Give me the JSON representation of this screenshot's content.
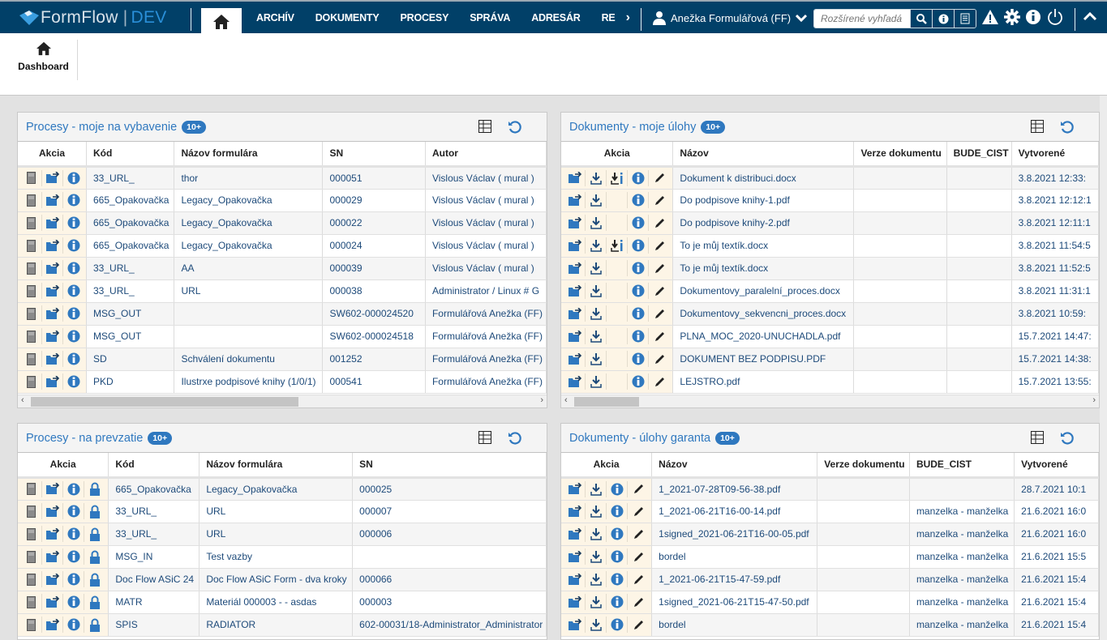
{
  "app": {
    "name": "FormFlow",
    "env": "DEV",
    "brand_color": "#014068",
    "accent": "#2f78bf"
  },
  "nav": {
    "items": [
      "ARCHÍV",
      "DOKUMENTY",
      "PROCESY",
      "SPRÁVA",
      "ADRESÁR",
      "RE"
    ]
  },
  "user": {
    "name": "Anežka Formulářová (FF)"
  },
  "search": {
    "placeholder": "Rozšírené vyhľadá"
  },
  "subnav": {
    "dashboard": "Dashboard"
  },
  "panels": [
    {
      "title": "Procesy - moje na vybavenie",
      "badge": "10+",
      "columns": [
        "Akcia",
        "Kód",
        "Názov formulára",
        "SN",
        "Autor"
      ],
      "rows": [
        [
          "33_URL_",
          "thor",
          "000051",
          "Vislous Václav ( mural )"
        ],
        [
          "665_Opakovačka",
          "Legacy_Opakovačka",
          "000029",
          "Vislous Václav ( mural )"
        ],
        [
          "665_Opakovačka",
          "Legacy_Opakovačka",
          "000022",
          "Vislous Václav ( mural )"
        ],
        [
          "665_Opakovačka",
          "Legacy_Opakovačka",
          "000024",
          "Vislous Václav ( mural )"
        ],
        [
          "33_URL_",
          "AA",
          "000039",
          "Vislous Václav ( mural )"
        ],
        [
          "33_URL_",
          "URL",
          "000038",
          "Administrator / Linux # G"
        ],
        [
          "MSG_OUT",
          "",
          "SW602-000024520",
          "Formulářová Anežka (FF)"
        ],
        [
          "MSG_OUT",
          "",
          "SW602-000024518",
          "Formulářová Anežka (FF)"
        ],
        [
          "SD",
          "Schválení dokumentu",
          "001252",
          "Formulářová Anežka (FF)"
        ],
        [
          "PKD",
          "Ilustrxe podpisové knihy (1/0/1)",
          "000541",
          "Formulářová Anežka (FF)"
        ]
      ],
      "actions": [
        [
          "document",
          "folder-swap",
          "info"
        ]
      ]
    },
    {
      "title": "Dokumenty - moje úlohy",
      "badge": "10+",
      "columns": [
        "Akcia",
        "Názov",
        "Verze dokumentu",
        "BUDE_CIST",
        "Vytvorené"
      ],
      "rows": [
        [
          "Dokument k distribuci.docx",
          "",
          "",
          "3.8.2021 12:33:"
        ],
        [
          "Do podpisove knihy-1.pdf",
          "",
          "",
          "3.8.2021 12:12:1"
        ],
        [
          "Do podpisove knihy-2.pdf",
          "",
          "",
          "3.8.2021 12:11:1"
        ],
        [
          "To je můj textík.docx",
          "",
          "",
          "3.8.2021 11:54:5"
        ],
        [
          "To je můj textík.docx",
          "",
          "",
          "3.8.2021 11:52:5"
        ],
        [
          "Dokumentovy_paralelní_proces.docx",
          "",
          "",
          "3.8.2021 11:31:1"
        ],
        [
          "Dokumentovy_sekvencni_proces.docx",
          "",
          "",
          "3.8.2021 10:59:"
        ],
        [
          "PLNA_MOC_2020-UNUCHADLA.pdf",
          "",
          "",
          "15.7.2021 14:47:"
        ],
        [
          "DOKUMENT BEZ PODPISU.PDF",
          "",
          "",
          "15.7.2021 14:38:"
        ],
        [
          "LEJSTRO.pdf",
          "",
          "",
          "15.7.2021 13:55:"
        ]
      ],
      "actions": [
        [
          "folder-swap",
          "download",
          "download-info",
          "info",
          "edit"
        ],
        [
          "folder-swap",
          "download",
          "",
          "info",
          "edit"
        ],
        [
          "folder-swap",
          "download",
          "",
          "info",
          "edit"
        ],
        [
          "folder-swap",
          "download",
          "download-info",
          "info",
          "edit"
        ],
        [
          "folder-swap",
          "download",
          "",
          "info",
          "edit"
        ]
      ]
    },
    {
      "title": "Procesy - na prevzatie",
      "badge": "10+",
      "columns": [
        "Akcia",
        "Kód",
        "Názov formulára",
        "SN"
      ],
      "rows": [
        [
          "665_Opakovačka",
          "Legacy_Opakovačka",
          "000025"
        ],
        [
          "33_URL_",
          "URL",
          "000007"
        ],
        [
          "33_URL_",
          "URL",
          "000006"
        ],
        [
          "MSG_IN",
          "Test vazby",
          ""
        ],
        [
          "Doc Flow ASiC 24",
          "Doc Flow ASiC Form - dva kroky",
          "000066"
        ],
        [
          "MATR",
          "Materiál 000003 - - asdas",
          "000003"
        ],
        [
          "SPIS",
          "RADIATOR",
          "602-00031/18-Administrator_Administrator"
        ]
      ],
      "actions": [
        [
          "document",
          "folder-swap",
          "info",
          "lock"
        ]
      ]
    },
    {
      "title": "Dokumenty - úlohy garanta",
      "badge": "10+",
      "columns": [
        "Akcia",
        "Názov",
        "Verze dokumentu",
        "BUDE_CIST",
        "Vytvorené"
      ],
      "rows": [
        [
          "1_2021-07-28T09-56-38.pdf",
          "",
          "",
          "28.7.2021 10:1"
        ],
        [
          "1_2021-06-21T16-00-14.pdf",
          "",
          "manzelka - manželka",
          "21.6.2021 16:0"
        ],
        [
          "1signed_2021-06-21T16-00-05.pdf",
          "",
          "manzelka - manželka",
          "21.6.2021 16:0"
        ],
        [
          "bordel",
          "",
          "manzelka - manželka",
          "21.6.2021 15:5"
        ],
        [
          "1_2021-06-21T15-47-59.pdf",
          "",
          "manzelka - manželka",
          "21.6.2021 15:4"
        ],
        [
          "1signed_2021-06-21T15-47-50.pdf",
          "",
          "manzelka - manželka",
          "21.6.2021 15:4"
        ],
        [
          "bordel",
          "",
          "manzelka - manželka",
          "21.6.2021 15:4"
        ]
      ],
      "actions": [
        [
          "folder-swap",
          "download",
          "info",
          "edit"
        ]
      ]
    }
  ]
}
